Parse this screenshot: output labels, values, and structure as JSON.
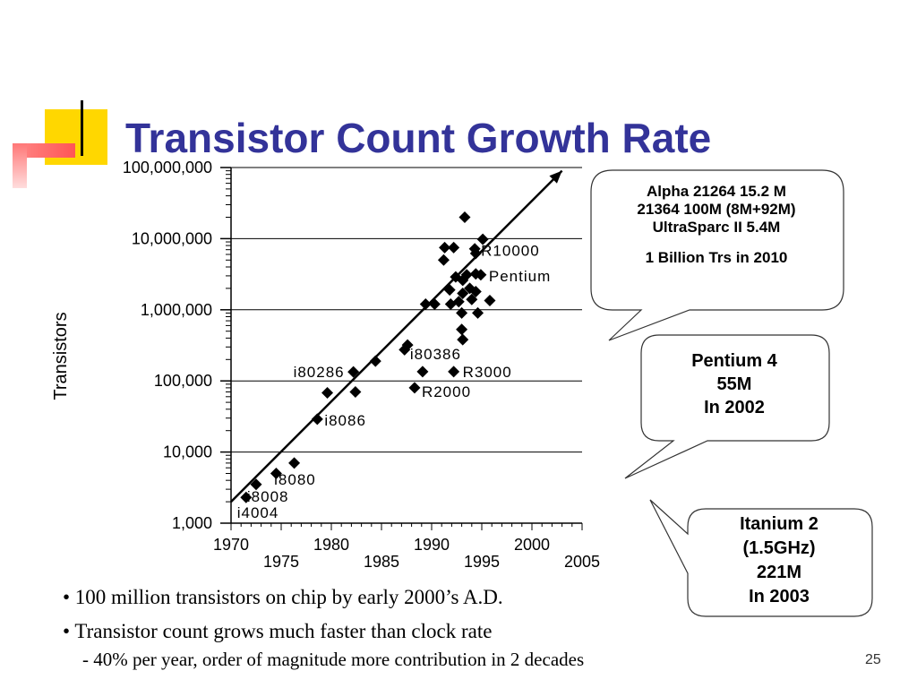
{
  "slide": {
    "title": "Transistor Count Growth Rate",
    "page_number": "25",
    "bullets": [
      "• 100 million transistors on chip by early 2000’s A.D.",
      "• Transistor count grows much faster than clock rate"
    ],
    "sub_bullet": "- 40% per year, order of magnitude more contribution in 2 decades",
    "callouts": {
      "alpha": {
        "lines": [
          "Alpha 21264 15.2 M",
          "21364 100M (8M+92M)",
          "UltraSparc II 5.4M",
          "",
          "1 Billion Trs in 2010"
        ]
      },
      "pentium4": {
        "lines": [
          "Pentium 4",
          "55M",
          "In 2002"
        ]
      },
      "itanium": {
        "lines": [
          "Itanium 2",
          "(1.5GHz)",
          "221M",
          "In 2003"
        ]
      }
    },
    "colors": {
      "title": "#333399",
      "deco_yellow": "#FFD700",
      "deco_red": "#FF6666"
    }
  },
  "chart_data": {
    "type": "scatter",
    "title": "",
    "xlabel": "",
    "ylabel": "Transistors",
    "y_scale": "log",
    "xlim": [
      1970,
      2005
    ],
    "ylim": [
      1000,
      100000000
    ],
    "x_ticks_upper": [
      "1970",
      "1980",
      "1990",
      "2000"
    ],
    "x_ticks_lower": [
      "1975",
      "1985",
      "1995",
      "2005"
    ],
    "y_ticks": [
      "1,000",
      "10,000",
      "100,000",
      "1,000,000",
      "10,000,000",
      "100,000,000"
    ],
    "grid": "horizontal at decades",
    "trend_line": {
      "from": [
        1970,
        2000
      ],
      "to": [
        2003,
        90000000
      ]
    },
    "points": [
      {
        "x": 1971.5,
        "y": 2300,
        "label": "i4004"
      },
      {
        "x": 1972.5,
        "y": 3500,
        "label": "i8008"
      },
      {
        "x": 1974.5,
        "y": 5000,
        "label": "i8080"
      },
      {
        "x": 1976.3,
        "y": 7000,
        "label": ""
      },
      {
        "x": 1978.6,
        "y": 29000,
        "label": "i8086"
      },
      {
        "x": 1979.6,
        "y": 68000,
        "label": ""
      },
      {
        "x": 1982.2,
        "y": 134000,
        "label": "i80286"
      },
      {
        "x": 1982.4,
        "y": 70000,
        "label": ""
      },
      {
        "x": 1984.4,
        "y": 190000,
        "label": ""
      },
      {
        "x": 1987.3,
        "y": 275000,
        "label": ""
      },
      {
        "x": 1987.6,
        "y": 320000,
        "label": ""
      },
      {
        "x": 1989.1,
        "y": 135000,
        "label": "i80386"
      },
      {
        "x": 1988.3,
        "y": 80000,
        "label": "R2000"
      },
      {
        "x": 1992.2,
        "y": 135000,
        "label": "R3000"
      },
      {
        "x": 1989.4,
        "y": 1200000,
        "label": ""
      },
      {
        "x": 1990.3,
        "y": 1200000,
        "label": ""
      },
      {
        "x": 1991.2,
        "y": 5000000,
        "label": ""
      },
      {
        "x": 1991.3,
        "y": 7500000,
        "label": ""
      },
      {
        "x": 1992.2,
        "y": 7500000,
        "label": ""
      },
      {
        "x": 1991.8,
        "y": 1900000,
        "label": ""
      },
      {
        "x": 1991.9,
        "y": 1200000,
        "label": ""
      },
      {
        "x": 1992.4,
        "y": 2900000,
        "label": ""
      },
      {
        "x": 1992.7,
        "y": 1300000,
        "label": ""
      },
      {
        "x": 1993.1,
        "y": 2600000,
        "label": ""
      },
      {
        "x": 1993.1,
        "y": 1700000,
        "label": ""
      },
      {
        "x": 1993.0,
        "y": 900000,
        "label": ""
      },
      {
        "x": 1993.0,
        "y": 530000,
        "label": ""
      },
      {
        "x": 1993.1,
        "y": 380000,
        "label": ""
      },
      {
        "x": 1993.3,
        "y": 20000000,
        "label": ""
      },
      {
        "x": 1993.5,
        "y": 3100000,
        "label": ""
      },
      {
        "x": 1993.8,
        "y": 2000000,
        "label": ""
      },
      {
        "x": 1994.0,
        "y": 1400000,
        "label": ""
      },
      {
        "x": 1994.3,
        "y": 7200000,
        "label": "R10000"
      },
      {
        "x": 1994.4,
        "y": 6200000,
        "label": ""
      },
      {
        "x": 1994.4,
        "y": 3200000,
        "label": ""
      },
      {
        "x": 1994.4,
        "y": 1800000,
        "label": ""
      },
      {
        "x": 1994.6,
        "y": 900000,
        "label": ""
      },
      {
        "x": 1994.9,
        "y": 3100000,
        "label": "Pentium"
      },
      {
        "x": 1995.1,
        "y": 9800000,
        "label": ""
      },
      {
        "x": 1995.8,
        "y": 1350000,
        "label": ""
      }
    ]
  }
}
